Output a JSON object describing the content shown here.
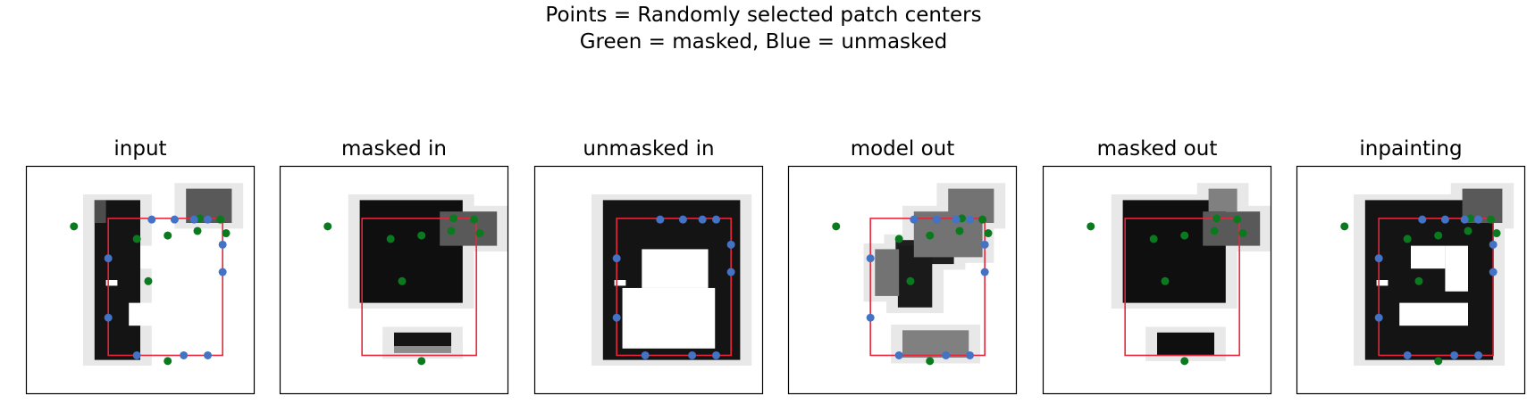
{
  "figure": {
    "title_lines": [
      "Points = Randomly selected patch centers",
      "Green = masked, Blue = unmasked"
    ]
  },
  "colors": {
    "masked_point": "#0b7a1f",
    "unmasked_point": "#4472c4",
    "bounding_box": "#e8253a",
    "axes": "#000000"
  },
  "chart_data": {
    "type": "image-grid",
    "grid_size": 20,
    "xlim": [
      0,
      20
    ],
    "ylim": [
      0,
      20
    ],
    "box": {
      "x0": 7.2,
      "y0": 4.6,
      "x1": 17.2,
      "y1": 16.6
    },
    "points": {
      "masked": [
        [
          4.2,
          5.3
        ],
        [
          9.7,
          6.4
        ],
        [
          12.4,
          6.1
        ],
        [
          15.0,
          5.7
        ],
        [
          10.7,
          10.1
        ],
        [
          17.0,
          4.7
        ],
        [
          17.5,
          5.9
        ],
        [
          12.4,
          17.1
        ],
        [
          15.2,
          4.6
        ]
      ],
      "unmasked": [
        [
          7.2,
          8.1
        ],
        [
          7.2,
          13.3
        ],
        [
          11.0,
          4.7
        ],
        [
          13.0,
          4.7
        ],
        [
          14.7,
          4.7
        ],
        [
          15.9,
          4.7
        ],
        [
          17.2,
          6.9
        ],
        [
          17.2,
          9.3
        ],
        [
          9.7,
          16.6
        ],
        [
          13.8,
          16.6
        ],
        [
          15.9,
          16.6
        ]
      ]
    },
    "panels": [
      {
        "name": "input",
        "show": "all",
        "images": [
          [
            6,
            3,
            10,
            17,
            0.08
          ],
          [
            6,
            3,
            7,
            5,
            0.3
          ],
          [
            14,
            2,
            18,
            5,
            0.35
          ]
        ],
        "holes": [
          [
            10,
            7,
            13,
            9
          ],
          [
            13,
            7,
            15,
            11
          ],
          [
            9,
            12,
            15,
            14
          ],
          [
            7,
            10,
            8,
            10.5
          ]
        ]
      },
      {
        "name": "masked in",
        "show": "masked",
        "images": [
          [
            7,
            3,
            16,
            12,
            0.06
          ],
          [
            14,
            4,
            19,
            7,
            0.35
          ],
          [
            10,
            14.6,
            15,
            15.8,
            0.08
          ],
          [
            10,
            15.8,
            15,
            16.4,
            0.55
          ]
        ],
        "holes": []
      },
      {
        "name": "unmasked in",
        "show": "unmasked",
        "images": [
          [
            6,
            3,
            18,
            17,
            0.08
          ]
        ],
        "holes": [
          [
            9.4,
            7.3,
            15.2,
            10.7
          ],
          [
            7.7,
            10.7,
            15.8,
            16
          ],
          [
            7,
            10,
            8,
            10.5
          ]
        ]
      },
      {
        "name": "model out",
        "show": "all",
        "images": [
          [
            9.4,
            6.5,
            14.5,
            8.6,
            0.12
          ],
          [
            9.6,
            7,
            12.6,
            12.4,
            0.1
          ],
          [
            7.6,
            7.3,
            9.7,
            11.4,
            0.45
          ],
          [
            11,
            4,
            17,
            8,
            0.45
          ],
          [
            14,
            2,
            18,
            5,
            0.45
          ],
          [
            10,
            14.4,
            15.8,
            16.8,
            0.5
          ]
        ],
        "holes": []
      },
      {
        "name": "masked out",
        "show": "masked",
        "images": [
          [
            7,
            3,
            16,
            12,
            0.06
          ],
          [
            14,
            4,
            19,
            7,
            0.35
          ],
          [
            14.5,
            2,
            17,
            4,
            0.5
          ],
          [
            10,
            14.6,
            15,
            16.6,
            0.06
          ]
        ],
        "holes": []
      },
      {
        "name": "inpainting",
        "show": "all",
        "images": [
          [
            6,
            3,
            17.2,
            17,
            0.08
          ],
          [
            14.5,
            2,
            18,
            5,
            0.35
          ]
        ],
        "holes": [
          [
            10,
            7,
            13,
            9
          ],
          [
            13,
            7,
            15,
            11
          ],
          [
            9,
            12,
            15,
            14
          ],
          [
            7,
            10,
            8,
            10.5
          ]
        ]
      }
    ]
  }
}
